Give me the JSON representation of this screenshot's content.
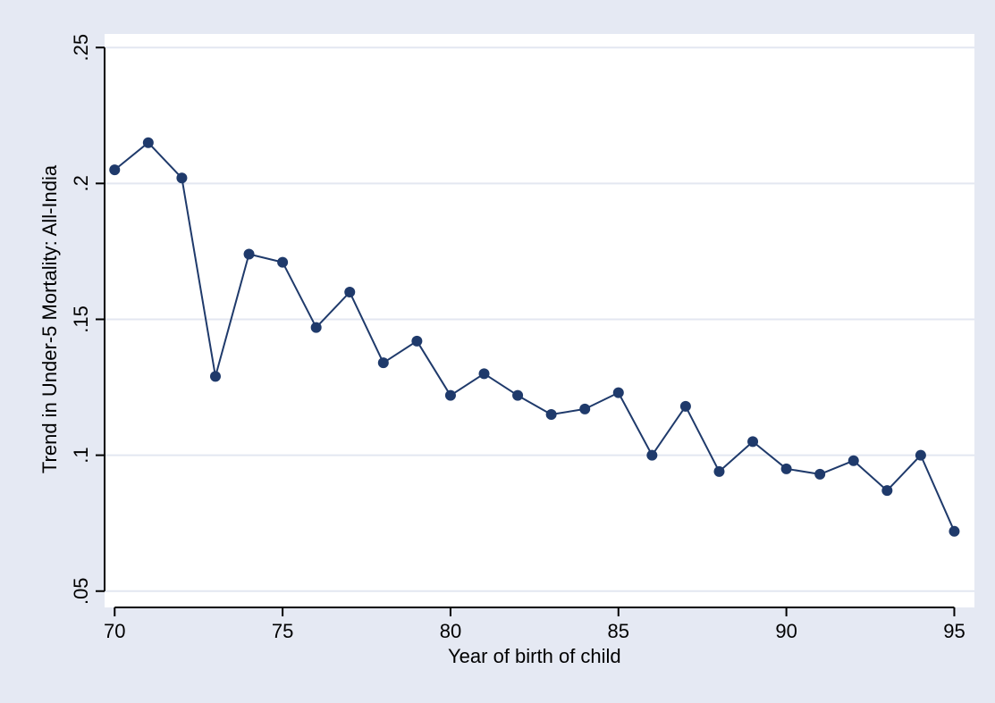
{
  "chart_data": {
    "type": "line",
    "title": "",
    "xlabel": "Year of birth of child",
    "ylabel": "Trend in Under-5 Mortality: All-India",
    "xlim": [
      69.7,
      95.6
    ],
    "ylim": [
      0.044,
      0.255
    ],
    "x_ticks": [
      70,
      75,
      80,
      85,
      90,
      95
    ],
    "x_tick_labels": [
      "70",
      "75",
      "80",
      "85",
      "90",
      "95"
    ],
    "y_ticks": [
      0.05,
      0.1,
      0.15,
      0.2,
      0.25
    ],
    "y_tick_labels": [
      ".05",
      ".1",
      ".15",
      ".2",
      ".25"
    ],
    "grid": "horizontal",
    "legend": "none",
    "colors": {
      "line": "#1f3a6b",
      "marker": "#1f3a6b",
      "grid": "#e3e7f1",
      "plot_bg": "#ffffff",
      "outer_bg": "#e5e9f3"
    },
    "series": [
      {
        "x": [
          70,
          71,
          72,
          73,
          74,
          75,
          76,
          77,
          78,
          79,
          80,
          81,
          82,
          83,
          84,
          85,
          86,
          87,
          88,
          89,
          90,
          91,
          92,
          93,
          94,
          95
        ],
        "values": [
          0.205,
          0.215,
          0.202,
          0.129,
          0.174,
          0.171,
          0.147,
          0.16,
          0.134,
          0.142,
          0.122,
          0.13,
          0.122,
          0.115,
          0.117,
          0.123,
          0.1,
          0.118,
          0.094,
          0.105,
          0.095,
          0.093,
          0.098,
          0.087,
          0.1,
          0.072
        ]
      }
    ]
  }
}
